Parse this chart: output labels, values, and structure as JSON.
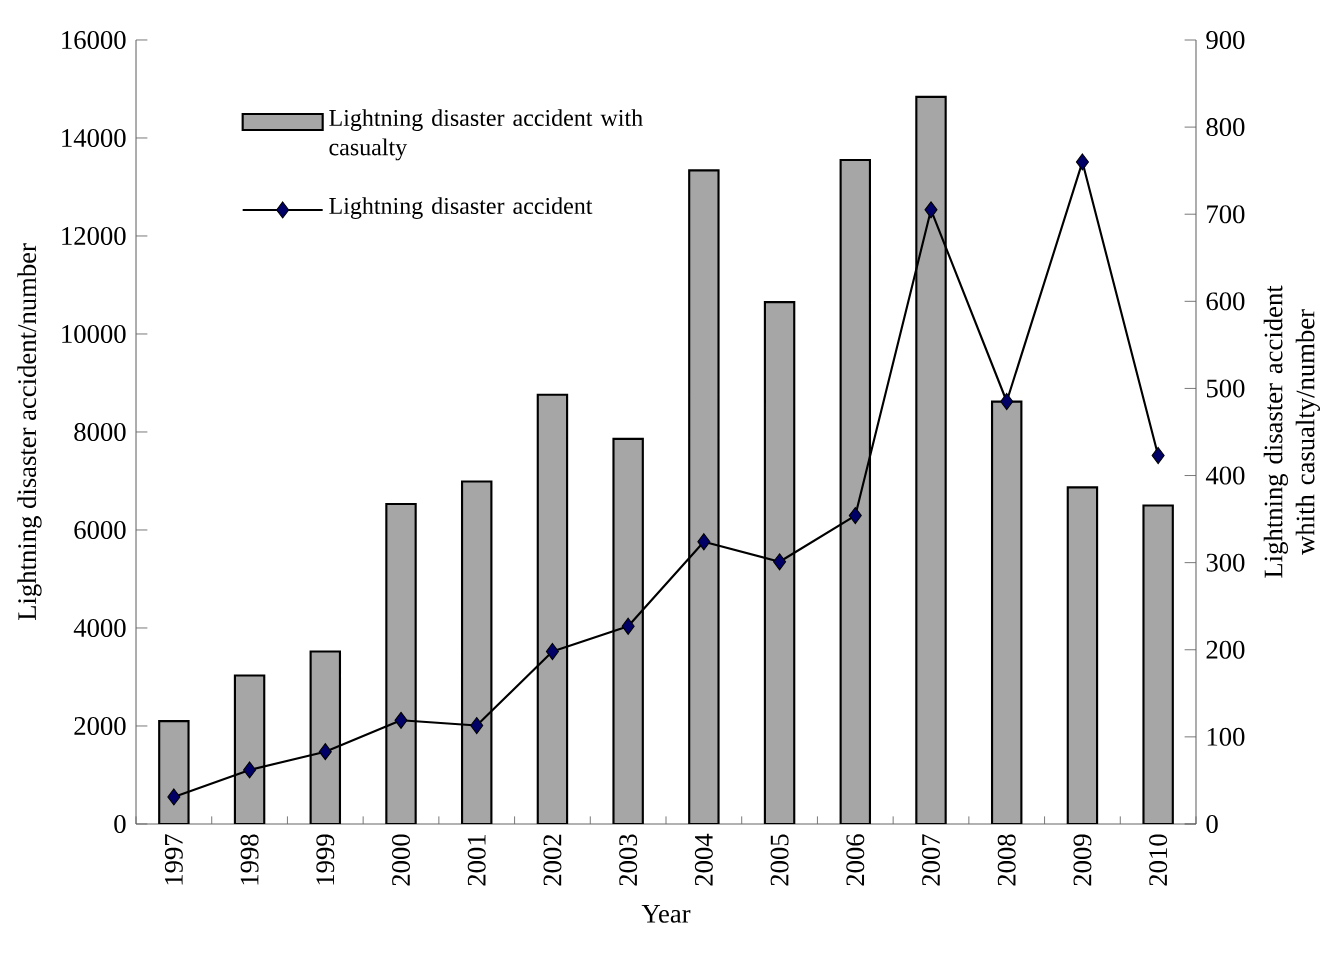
{
  "chart_data": {
    "type": "bar",
    "xlabel": "Year",
    "ylabel": "Lightning disaster accident/number",
    "y2label": "Lightning disaster accident whith casualty/number",
    "categories": [
      "1997",
      "1998",
      "1999",
      "2000",
      "2001",
      "2002",
      "2003",
      "2004",
      "2005",
      "2006",
      "2007",
      "2008",
      "2009",
      "2010"
    ],
    "series": [
      {
        "name": "Lightning disaster accident with casualty",
        "color": "#a6a6a6",
        "values": [
          2100,
          3030,
          3520,
          6530,
          6990,
          8760,
          7860,
          13340,
          10650,
          13550,
          14840,
          8620,
          6870,
          6500
        ]
      },
      {
        "name": "Lightning disaster accident",
        "type": "line",
        "axis": "y2",
        "color": "#000066",
        "values": [
          31,
          62,
          83,
          119,
          113,
          198,
          227,
          324,
          301,
          354,
          705,
          485,
          760,
          423
        ]
      }
    ],
    "marker": "diamond",
    "legend": "top left",
    "ylim": [
      0,
      16000
    ],
    "yticks": [
      0,
      2000,
      4000,
      6000,
      8000,
      10000,
      12000,
      14000,
      16000
    ],
    "y2lim": [
      0,
      900
    ],
    "y2ticks": [
      0,
      100,
      200,
      300,
      400,
      500,
      600,
      700,
      800,
      900
    ]
  }
}
